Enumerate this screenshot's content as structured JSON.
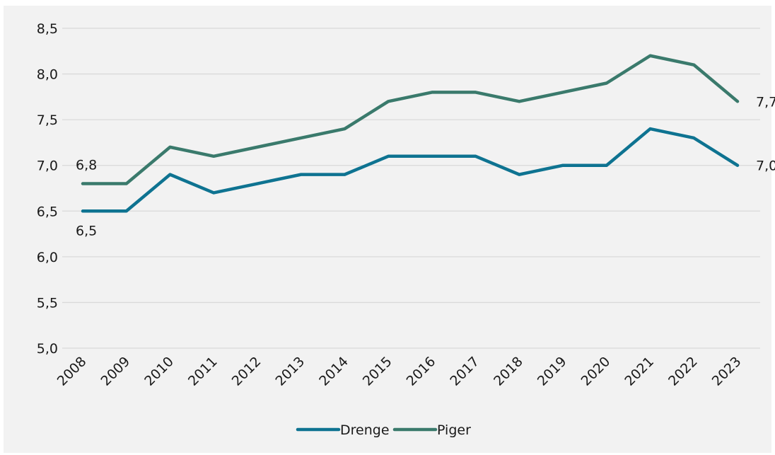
{
  "chart_data": {
    "type": "line",
    "title": "",
    "xlabel": "",
    "ylabel": "",
    "categories": [
      "2008",
      "2009",
      "2010",
      "2011",
      "2012",
      "2013",
      "2014",
      "2015",
      "2016",
      "2017",
      "2018",
      "2019",
      "2020",
      "2021",
      "2022",
      "2023"
    ],
    "ylim": [
      5.0,
      8.5
    ],
    "yticks": [
      "5,0",
      "5,5",
      "6,0",
      "6,5",
      "7,0",
      "7,5",
      "8,0",
      "8,5"
    ],
    "grid": true,
    "legend_position": "bottom",
    "series": [
      {
        "name": "Drenge",
        "color": "#0e7391",
        "values": [
          6.5,
          6.5,
          6.9,
          6.7,
          6.8,
          6.9,
          6.9,
          7.1,
          7.1,
          7.1,
          6.9,
          7.0,
          7.0,
          7.4,
          7.3,
          7.0
        ],
        "first_label": "6,5",
        "last_label": "7,0"
      },
      {
        "name": "Piger",
        "color": "#3a7a6c",
        "values": [
          6.8,
          6.8,
          7.2,
          7.1,
          7.2,
          7.3,
          7.4,
          7.7,
          7.8,
          7.8,
          7.7,
          7.8,
          7.9,
          8.2,
          8.1,
          7.7
        ],
        "first_label": "6,8",
        "last_label": "7,7"
      }
    ]
  }
}
